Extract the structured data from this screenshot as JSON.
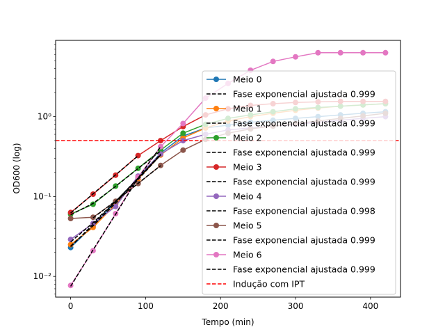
{
  "chart_data": {
    "type": "line",
    "xlabel": "Tempo (min)",
    "ylabel": "OD600 (log)",
    "yscale": "log",
    "xlim": [
      -20,
      440
    ],
    "ylim": [
      0.0055,
      9.0
    ],
    "xticks": [
      0,
      100,
      200,
      300,
      400
    ],
    "xtick_labels": [
      "0",
      "100",
      "200",
      "300",
      "400"
    ],
    "yticks": [
      0.01,
      0.1,
      1
    ],
    "ytick_labels": [
      "10⁻²",
      "10⁻¹",
      "10⁰"
    ],
    "grid": false,
    "legend_position": "right",
    "series": [
      {
        "name": "Meio 0",
        "color": "#1f77b4",
        "x": [
          0,
          30,
          60,
          90,
          120,
          150,
          180,
          210,
          240,
          270,
          300,
          330,
          360,
          390,
          420
        ],
        "y": [
          0.023,
          0.043,
          0.085,
          0.17,
          0.35,
          0.57,
          0.72,
          0.78,
          0.85,
          0.9,
          0.95,
          1.0,
          1.05,
          1.1,
          1.15
        ],
        "fit": {
          "x": [
            0,
            30,
            60,
            90,
            120
          ],
          "y": [
            0.0235,
            0.045,
            0.087,
            0.168,
            0.34
          ],
          "label": "Fase exponencial ajustada 0.999"
        }
      },
      {
        "name": "Meio 1",
        "color": "#ff7f0e",
        "x": [
          0,
          30,
          60,
          90,
          120,
          150,
          180,
          210,
          240,
          270,
          300,
          330,
          360,
          390,
          420
        ],
        "y": [
          0.025,
          0.041,
          0.08,
          0.165,
          0.33,
          0.54,
          0.72,
          0.88,
          1.0,
          1.1,
          1.2,
          1.28,
          1.35,
          1.4,
          1.45
        ],
        "fit": {
          "x": [
            0,
            30,
            60,
            90,
            120
          ],
          "y": [
            0.024,
            0.043,
            0.083,
            0.163,
            0.33
          ],
          "label": "Fase exponencial ajustada 0.999"
        }
      },
      {
        "name": "Meio 2",
        "color": "#2ca02c",
        "x": [
          0,
          30,
          60,
          90,
          120,
          150,
          180,
          210,
          240,
          270,
          300,
          330,
          360,
          390,
          420
        ],
        "y": [
          0.06,
          0.08,
          0.135,
          0.225,
          0.38,
          0.62,
          0.8,
          0.95,
          1.05,
          1.15,
          1.25,
          1.3,
          1.35,
          1.4,
          1.45
        ],
        "fit": {
          "x": [
            0,
            30,
            60,
            90,
            120
          ],
          "y": [
            0.059,
            0.082,
            0.134,
            0.224,
            0.37
          ],
          "label": "Fase exponencial ajustada 0.999"
        }
      },
      {
        "name": "Meio 3",
        "color": "#d62728",
        "x": [
          0,
          30,
          60,
          90,
          120,
          150,
          180,
          210,
          240,
          270,
          300,
          330,
          360,
          390,
          420
        ],
        "y": [
          0.063,
          0.107,
          0.185,
          0.325,
          0.5,
          0.75,
          1.05,
          1.25,
          1.38,
          1.45,
          1.5,
          1.53,
          1.55,
          1.55,
          1.55
        ],
        "fit": {
          "x": [
            0,
            30,
            60,
            90
          ],
          "y": [
            0.062,
            0.108,
            0.187,
            0.323
          ],
          "label": "Fase exponencial ajustada 0.999"
        }
      },
      {
        "name": "Meio 4",
        "color": "#9467bd",
        "x": [
          0,
          30,
          60,
          90,
          120,
          150,
          180,
          210,
          240,
          270,
          300,
          330,
          360,
          390,
          420
        ],
        "y": [
          0.029,
          0.046,
          0.075,
          0.18,
          0.34,
          0.5,
          0.6,
          0.68,
          0.72,
          0.76,
          0.8,
          0.85,
          0.9,
          0.95,
          1.0
        ],
        "fit": {
          "x": [
            0,
            30,
            60,
            90,
            120
          ],
          "y": [
            0.027,
            0.047,
            0.087,
            0.17,
            0.33
          ],
          "label": "Fase exponencial ajustada 0.998"
        }
      },
      {
        "name": "Meio 5",
        "color": "#8c564b",
        "x": [
          0,
          30,
          60,
          90,
          120,
          150,
          180,
          210,
          240,
          270,
          300,
          330,
          360,
          390,
          420
        ],
        "y": [
          0.053,
          0.055,
          0.087,
          0.145,
          0.245,
          0.38,
          0.52,
          0.62,
          0.7,
          0.76,
          0.82,
          0.88,
          0.95,
          1.02,
          1.1
        ],
        "fit": {
          "x": [
            30,
            60,
            90,
            120
          ],
          "y": [
            0.054,
            0.088,
            0.146,
            0.243
          ],
          "label": "Fase exponencial ajustada 0.999"
        }
      },
      {
        "name": "Meio 6",
        "color": "#e377c2",
        "x": [
          0,
          30,
          60,
          90,
          120,
          150,
          180,
          210,
          240,
          270,
          300,
          330,
          360,
          390,
          420
        ],
        "y": [
          0.0077,
          0.021,
          0.061,
          0.175,
          0.42,
          0.82,
          1.7,
          2.6,
          3.8,
          4.9,
          5.6,
          6.3,
          6.3,
          6.3,
          6.3
        ],
        "fit": {
          "x": [
            0,
            30,
            60,
            90,
            120
          ],
          "y": [
            0.0075,
            0.0215,
            0.06,
            0.17,
            0.42
          ],
          "label": "Fase exponencial ajustada 0.999"
        }
      }
    ],
    "hline": {
      "y": 0.5,
      "color": "#ff0000",
      "label": "Indução com IPT"
    }
  }
}
